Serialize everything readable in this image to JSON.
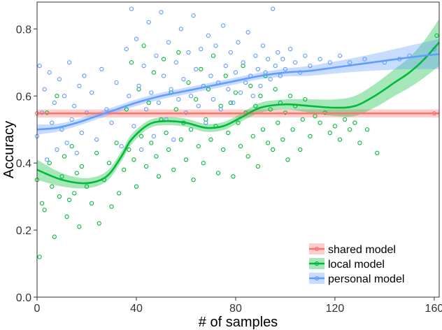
{
  "chart_data": {
    "type": "scatter",
    "title": "",
    "xlabel": "# of samples",
    "ylabel": "Accuracy",
    "xlim": [
      0,
      162
    ],
    "ylim": [
      0.0,
      0.88
    ],
    "x_ticks": [
      0,
      40,
      80,
      120,
      160
    ],
    "y_ticks": [
      0.0,
      0.2,
      0.4,
      0.6,
      0.8
    ],
    "x_tick_labels": [
      "0",
      "40",
      "80",
      "120",
      "160"
    ],
    "y_tick_labels": [
      "0.0",
      "0.2",
      "0.4",
      "0.6",
      "0.8"
    ],
    "legend_position": "bottom-right",
    "series": [
      {
        "name": "shared model",
        "color": "#f8766d",
        "trend": [
          [
            0,
            0.548
          ],
          [
            40,
            0.548
          ],
          [
            80,
            0.548
          ],
          [
            120,
            0.548
          ],
          [
            162,
            0.548
          ]
        ],
        "band": [
          0.012,
          0.012,
          0.012,
          0.012,
          0.012
        ],
        "points": [
          [
            0,
            0.548
          ],
          [
            160,
            0.548
          ]
        ]
      },
      {
        "name": "local model",
        "color": "#00ba38",
        "trend": [
          [
            0,
            0.38
          ],
          [
            10,
            0.35
          ],
          [
            20,
            0.34
          ],
          [
            28,
            0.36
          ],
          [
            34,
            0.42
          ],
          [
            38,
            0.47
          ],
          [
            45,
            0.515
          ],
          [
            52,
            0.525
          ],
          [
            60,
            0.52
          ],
          [
            68,
            0.505
          ],
          [
            75,
            0.51
          ],
          [
            82,
            0.535
          ],
          [
            90,
            0.565
          ],
          [
            100,
            0.575
          ],
          [
            110,
            0.57
          ],
          [
            120,
            0.565
          ],
          [
            128,
            0.57
          ],
          [
            136,
            0.6
          ],
          [
            144,
            0.64
          ],
          [
            150,
            0.67
          ],
          [
            156,
            0.71
          ],
          [
            162,
            0.76
          ]
        ],
        "band": [
          0.03,
          0.02,
          0.015,
          0.015,
          0.015,
          0.015,
          0.012,
          0.012,
          0.012,
          0.012,
          0.012,
          0.012,
          0.015,
          0.015,
          0.02,
          0.025,
          0.03,
          0.035,
          0.04,
          0.045,
          0.055,
          0.07
        ],
        "points": [
          [
            0,
            0.35
          ],
          [
            1,
            0.12
          ],
          [
            2,
            0.28
          ],
          [
            3,
            0.26
          ],
          [
            4,
            0.55
          ],
          [
            5,
            0.4
          ],
          [
            6,
            0.33
          ],
          [
            7,
            0.18
          ],
          [
            8,
            0.6
          ],
          [
            9,
            0.3
          ],
          [
            10,
            0.36
          ],
          [
            11,
            0.42
          ],
          [
            12,
            0.24
          ],
          [
            13,
            0.29
          ],
          [
            14,
            0.45
          ],
          [
            15,
            0.31
          ],
          [
            16,
            0.37
          ],
          [
            17,
            0.21
          ],
          [
            18,
            0.39
          ],
          [
            20,
            0.33
          ],
          [
            22,
            0.28
          ],
          [
            24,
            0.43
          ],
          [
            25,
            0.22
          ],
          [
            27,
            0.35
          ],
          [
            29,
            0.4
          ],
          [
            30,
            0.27
          ],
          [
            32,
            0.46
          ],
          [
            33,
            0.31
          ],
          [
            35,
            0.38
          ],
          [
            36,
            0.56
          ],
          [
            37,
            0.44
          ],
          [
            38,
            0.7
          ],
          [
            39,
            0.41
          ],
          [
            40,
            0.33
          ],
          [
            41,
            0.62
          ],
          [
            42,
            0.48
          ],
          [
            43,
            0.75
          ],
          [
            44,
            0.39
          ],
          [
            45,
            0.58
          ],
          [
            46,
            0.46
          ],
          [
            47,
            0.67
          ],
          [
            48,
            0.42
          ],
          [
            49,
            0.36
          ],
          [
            50,
            0.53
          ],
          [
            51,
            0.71
          ],
          [
            52,
            0.49
          ],
          [
            53,
            0.44
          ],
          [
            54,
            0.61
          ],
          [
            55,
            0.38
          ],
          [
            56,
            0.56
          ],
          [
            57,
            0.73
          ],
          [
            58,
            0.47
          ],
          [
            59,
            0.52
          ],
          [
            60,
            0.41
          ],
          [
            61,
            0.64
          ],
          [
            62,
            0.5
          ],
          [
            63,
            0.35
          ],
          [
            64,
            0.59
          ],
          [
            65,
            0.45
          ],
          [
            66,
            0.68
          ],
          [
            67,
            0.4
          ],
          [
            68,
            0.53
          ],
          [
            69,
            0.62
          ],
          [
            70,
            0.47
          ],
          [
            71,
            0.72
          ],
          [
            72,
            0.51
          ],
          [
            73,
            0.37
          ],
          [
            74,
            0.57
          ],
          [
            75,
            0.44
          ],
          [
            76,
            0.66
          ],
          [
            77,
            0.49
          ],
          [
            78,
            0.58
          ],
          [
            79,
            0.36
          ],
          [
            80,
            0.61
          ],
          [
            81,
            0.52
          ],
          [
            82,
            0.45
          ],
          [
            83,
            0.69
          ],
          [
            84,
            0.55
          ],
          [
            85,
            0.42
          ],
          [
            86,
            0.63
          ],
          [
            87,
            0.48
          ],
          [
            88,
            0.57
          ],
          [
            89,
            0.39
          ],
          [
            90,
            0.6
          ],
          [
            91,
            0.5
          ],
          [
            92,
            0.66
          ],
          [
            93,
            0.46
          ],
          [
            94,
            0.56
          ],
          [
            95,
            0.44
          ],
          [
            96,
            0.62
          ],
          [
            97,
            0.52
          ],
          [
            98,
            0.58
          ],
          [
            99,
            0.47
          ],
          [
            100,
            0.55
          ],
          [
            101,
            0.41
          ],
          [
            102,
            0.6
          ],
          [
            103,
            0.5
          ],
          [
            104,
            0.57
          ],
          [
            106,
            0.44
          ],
          [
            107,
            0.53
          ],
          [
            108,
            0.59
          ],
          [
            110,
            0.48
          ],
          [
            112,
            0.54
          ],
          [
            114,
            0.52
          ],
          [
            116,
            0.55
          ],
          [
            118,
            0.49
          ],
          [
            120,
            0.51
          ],
          [
            122,
            0.47
          ],
          [
            124,
            0.53
          ],
          [
            126,
            0.5
          ],
          [
            128,
            0.52
          ],
          [
            130,
            0.46
          ],
          [
            133,
            0.5
          ],
          [
            137,
            0.43
          ],
          [
            161,
            0.78
          ]
        ]
      },
      {
        "name": "personal model",
        "color": "#619cff",
        "trend": [
          [
            0,
            0.5
          ],
          [
            8,
            0.505
          ],
          [
            16,
            0.52
          ],
          [
            24,
            0.54
          ],
          [
            32,
            0.56
          ],
          [
            40,
            0.58
          ],
          [
            50,
            0.6
          ],
          [
            60,
            0.615
          ],
          [
            70,
            0.63
          ],
          [
            80,
            0.645
          ],
          [
            90,
            0.66
          ],
          [
            100,
            0.67
          ],
          [
            110,
            0.675
          ],
          [
            120,
            0.685
          ],
          [
            130,
            0.695
          ],
          [
            140,
            0.705
          ],
          [
            150,
            0.715
          ],
          [
            162,
            0.725
          ]
        ],
        "band": [
          0.015,
          0.012,
          0.01,
          0.01,
          0.01,
          0.01,
          0.01,
          0.01,
          0.01,
          0.01,
          0.01,
          0.012,
          0.015,
          0.018,
          0.022,
          0.028,
          0.035,
          0.045
        ],
        "points": [
          [
            0,
            0.48
          ],
          [
            1,
            0.69
          ],
          [
            2,
            0.55
          ],
          [
            3,
            0.62
          ],
          [
            4,
            0.41
          ],
          [
            5,
            0.67
          ],
          [
            6,
            0.52
          ],
          [
            7,
            0.58
          ],
          [
            8,
            0.44
          ],
          [
            9,
            0.65
          ],
          [
            10,
            0.5
          ],
          [
            11,
            0.6
          ],
          [
            12,
            0.46
          ],
          [
            13,
            0.7
          ],
          [
            14,
            0.53
          ],
          [
            15,
            0.57
          ],
          [
            16,
            0.43
          ],
          [
            17,
            0.63
          ],
          [
            18,
            0.49
          ],
          [
            19,
            0.66
          ],
          [
            20,
            0.55
          ],
          [
            22,
            0.61
          ],
          [
            24,
            0.47
          ],
          [
            26,
            0.68
          ],
          [
            28,
            0.56
          ],
          [
            30,
            0.52
          ],
          [
            32,
            0.64
          ],
          [
            34,
            0.45
          ],
          [
            36,
            0.74
          ],
          [
            37,
            0.6
          ],
          [
            38,
            0.86
          ],
          [
            39,
            0.51
          ],
          [
            40,
            0.77
          ],
          [
            41,
            0.63
          ],
          [
            42,
            0.44
          ],
          [
            43,
            0.69
          ],
          [
            44,
            0.56
          ],
          [
            45,
            0.82
          ],
          [
            46,
            0.61
          ],
          [
            47,
            0.48
          ],
          [
            48,
            0.72
          ],
          [
            49,
            0.58
          ],
          [
            50,
            0.85
          ],
          [
            51,
            0.66
          ],
          [
            52,
            0.53
          ],
          [
            53,
            0.76
          ],
          [
            54,
            0.62
          ],
          [
            55,
            0.47
          ],
          [
            56,
            0.7
          ],
          [
            57,
            0.59
          ],
          [
            58,
            0.8
          ],
          [
            59,
            0.65
          ],
          [
            60,
            0.55
          ],
          [
            61,
            0.73
          ],
          [
            62,
            0.6
          ],
          [
            63,
            0.84
          ],
          [
            64,
            0.68
          ],
          [
            65,
            0.57
          ],
          [
            66,
            0.74
          ],
          [
            67,
            0.63
          ],
          [
            68,
            0.52
          ],
          [
            69,
            0.78
          ],
          [
            70,
            0.66
          ],
          [
            71,
            0.59
          ],
          [
            72,
            0.75
          ],
          [
            73,
            0.64
          ],
          [
            74,
            0.56
          ],
          [
            75,
            0.81
          ],
          [
            76,
            0.69
          ],
          [
            77,
            0.62
          ],
          [
            78,
            0.73
          ],
          [
            79,
            0.58
          ],
          [
            80,
            0.67
          ],
          [
            81,
            0.76
          ],
          [
            82,
            0.61
          ],
          [
            83,
            0.7
          ],
          [
            84,
            0.64
          ],
          [
            85,
            0.79
          ],
          [
            86,
            0.66
          ],
          [
            87,
            0.6
          ],
          [
            88,
            0.72
          ],
          [
            89,
            0.68
          ],
          [
            90,
            0.63
          ],
          [
            91,
            0.75
          ],
          [
            92,
            0.67
          ],
          [
            93,
            0.71
          ],
          [
            94,
            0.65
          ],
          [
            95,
            0.86
          ],
          [
            96,
            0.69
          ],
          [
            97,
            0.73
          ],
          [
            98,
            0.66
          ],
          [
            99,
            0.71
          ],
          [
            100,
            0.68
          ],
          [
            102,
            0.74
          ],
          [
            104,
            0.7
          ],
          [
            106,
            0.67
          ],
          [
            108,
            0.72
          ],
          [
            110,
            0.69
          ],
          [
            114,
            0.71
          ],
          [
            118,
            0.7
          ],
          [
            122,
            0.72
          ],
          [
            126,
            0.7
          ],
          [
            132,
            0.71
          ],
          [
            140,
            0.7
          ],
          [
            146,
            0.71
          ],
          [
            150,
            0.72
          ],
          [
            160,
            0.74
          ]
        ]
      }
    ]
  }
}
